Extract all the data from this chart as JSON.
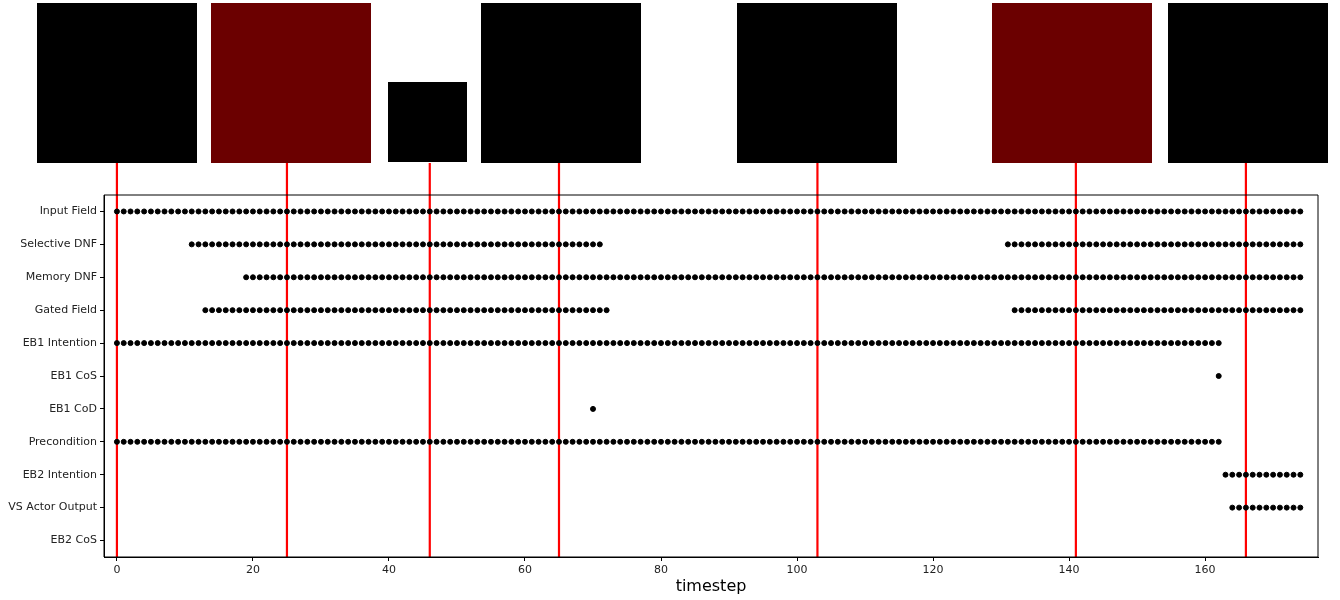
{
  "chart_data": {
    "type": "scatter",
    "xlabel": "timestep",
    "xlim": [
      -1.9,
      176.6
    ],
    "xticks": [
      0,
      20,
      40,
      60,
      80,
      100,
      120,
      140,
      160
    ],
    "orientation": "horizontal",
    "categories": [
      "Input Field",
      "Selective DNF",
      "Memory DNF",
      "Gated Field",
      "EB1 Intention",
      "EB1 CoS",
      "EB1 CoD",
      "Precondition",
      "EB2 Intention",
      "VS Actor Output",
      "EB2 CoS"
    ],
    "grid": false,
    "legend": false,
    "marker": "circle",
    "ref_lines": [
      {
        "axis": "x",
        "value": 0,
        "color": "#ff0000"
      },
      {
        "axis": "x",
        "value": 25,
        "color": "#ff0000"
      },
      {
        "axis": "x",
        "value": 46,
        "color": "#ff0000"
      },
      {
        "axis": "x",
        "value": 65,
        "color": "#ff0000"
      },
      {
        "axis": "x",
        "value": 103,
        "color": "#ff0000"
      },
      {
        "axis": "x",
        "value": 141,
        "color": "#ff0000"
      },
      {
        "axis": "x",
        "value": 166,
        "color": "#ff0000"
      }
    ],
    "series": [
      {
        "color": "#000000",
        "x": [
          "Input Field",
          "Input Field",
          "Input Field",
          "Input Field",
          "Input Field",
          "Input Field",
          "Input Field",
          "Input Field",
          "Input Field",
          "Input Field",
          "Input Field",
          "Input Field",
          "Input Field",
          "Input Field",
          "Input Field",
          "Input Field",
          "Input Field",
          "Input Field",
          "Input Field",
          "Input Field",
          "Input Field",
          "Input Field",
          "Input Field",
          "Input Field",
          "Input Field",
          "Input Field",
          "Input Field",
          "Input Field",
          "Input Field",
          "Input Field",
          "Input Field",
          "Input Field",
          "Input Field",
          "Input Field",
          "Input Field",
          "Input Field",
          "Input Field",
          "Input Field",
          "Input Field",
          "Input Field",
          "Input Field",
          "Input Field",
          "Input Field",
          "Input Field",
          "Input Field",
          "Input Field",
          "Input Field",
          "Input Field",
          "Input Field",
          "Input Field",
          "Input Field",
          "Input Field",
          "Input Field",
          "Input Field",
          "Input Field",
          "Input Field",
          "Input Field",
          "Input Field",
          "Input Field",
          "Input Field",
          "Input Field",
          "Input Field",
          "Input Field",
          "Input Field",
          "Input Field",
          "Input Field",
          "Input Field",
          "Input Field",
          "Input Field",
          "Input Field",
          "Input Field",
          "Input Field",
          "Input Field",
          "Input Field",
          "Input Field",
          "Input Field",
          "Input Field",
          "Input Field",
          "Input Field",
          "Input Field",
          "Input Field",
          "Input Field",
          "Input Field",
          "Input Field",
          "Input Field",
          "Input Field",
          "Input Field",
          "Input Field",
          "Input Field",
          "Input Field",
          "Input Field",
          "Input Field",
          "Input Field",
          "Input Field",
          "Input Field",
          "Input Field",
          "Input Field",
          "Input Field",
          "Input Field",
          "Input Field",
          "Input Field",
          "Input Field",
          "Input Field",
          "Input Field",
          "Input Field",
          "Input Field",
          "Input Field",
          "Input Field",
          "Input Field",
          "Input Field",
          "Input Field",
          "Input Field",
          "Input Field",
          "Input Field",
          "Input Field",
          "Input Field",
          "Input Field",
          "Input Field",
          "Input Field",
          "Input Field",
          "Input Field",
          "Input Field",
          "Input Field",
          "Input Field",
          "Input Field",
          "Input Field",
          "Input Field",
          "Input Field",
          "Input Field",
          "Input Field",
          "Input Field",
          "Input Field",
          "Input Field",
          "Input Field",
          "Input Field",
          "Input Field",
          "Input Field",
          "Input Field",
          "Input Field",
          "Input Field",
          "Input Field",
          "Input Field",
          "Input Field",
          "Input Field",
          "Input Field",
          "Input Field",
          "Input Field",
          "Input Field",
          "Input Field",
          "Input Field",
          "Input Field",
          "Input Field",
          "Input Field",
          "Input Field",
          "Input Field",
          "Input Field",
          "Input Field",
          "Input Field",
          "Input Field",
          "Input Field",
          "Input Field",
          "Input Field",
          "Input Field",
          "Input Field",
          "Input Field",
          "Input Field",
          "Input Field",
          "Input Field",
          "Input Field",
          "Input Field",
          "Input Field",
          "Input Field",
          "Input Field",
          "Input Field",
          "Input Field"
        ],
        "values": [
          0,
          1,
          2,
          3,
          4,
          5,
          6,
          7,
          8,
          9,
          10,
          11,
          12,
          13,
          14,
          15,
          16,
          17,
          18,
          19,
          20,
          21,
          22,
          23,
          24,
          25,
          26,
          27,
          28,
          29,
          30,
          31,
          32,
          33,
          34,
          35,
          36,
          37,
          38,
          39,
          40,
          41,
          42,
          43,
          44,
          45,
          46,
          47,
          48,
          49,
          50,
          51,
          52,
          53,
          54,
          55,
          56,
          57,
          58,
          59,
          60,
          61,
          62,
          63,
          64,
          65,
          66,
          67,
          68,
          69,
          70,
          71,
          72,
          73,
          74,
          75,
          76,
          77,
          78,
          79,
          80,
          81,
          82,
          83,
          84,
          85,
          86,
          87,
          88,
          89,
          90,
          91,
          92,
          93,
          94,
          95,
          96,
          97,
          98,
          99,
          100,
          101,
          102,
          103,
          104,
          105,
          106,
          107,
          108,
          109,
          110,
          111,
          112,
          113,
          114,
          115,
          116,
          117,
          118,
          119,
          120,
          121,
          122,
          123,
          124,
          125,
          126,
          127,
          128,
          129,
          130,
          131,
          132,
          133,
          134,
          135,
          136,
          137,
          138,
          139,
          140,
          141,
          142,
          143,
          144,
          145,
          146,
          147,
          148,
          149,
          150,
          151,
          152,
          153,
          154,
          155,
          156,
          157,
          158,
          159,
          160,
          161,
          162,
          163,
          164,
          165,
          166,
          167,
          168,
          169,
          170,
          171,
          172,
          173,
          174
        ]
      },
      {
        "color": "#000000",
        "x": [
          "Selective DNF",
          "Selective DNF",
          "Selective DNF",
          "Selective DNF",
          "Selective DNF",
          "Selective DNF",
          "Selective DNF",
          "Selective DNF",
          "Selective DNF",
          "Selective DNF",
          "Selective DNF",
          "Selective DNF",
          "Selective DNF",
          "Selective DNF",
          "Selective DNF",
          "Selective DNF",
          "Selective DNF",
          "Selective DNF",
          "Selective DNF",
          "Selective DNF",
          "Selective DNF",
          "Selective DNF",
          "Selective DNF",
          "Selective DNF",
          "Selective DNF",
          "Selective DNF",
          "Selective DNF",
          "Selective DNF",
          "Selective DNF",
          "Selective DNF",
          "Selective DNF",
          "Selective DNF",
          "Selective DNF",
          "Selective DNF",
          "Selective DNF",
          "Selective DNF",
          "Selective DNF",
          "Selective DNF",
          "Selective DNF",
          "Selective DNF",
          "Selective DNF",
          "Selective DNF",
          "Selective DNF",
          "Selective DNF",
          "Selective DNF",
          "Selective DNF",
          "Selective DNF",
          "Selective DNF",
          "Selective DNF",
          "Selective DNF",
          "Selective DNF",
          "Selective DNF",
          "Selective DNF",
          "Selective DNF",
          "Selective DNF",
          "Selective DNF",
          "Selective DNF",
          "Selective DNF",
          "Selective DNF",
          "Selective DNF",
          "Selective DNF",
          "Selective DNF",
          "Selective DNF",
          "Selective DNF",
          "Selective DNF",
          "Selective DNF",
          "Selective DNF",
          "Selective DNF",
          "Selective DNF",
          "Selective DNF",
          "Selective DNF",
          "Selective DNF",
          "Selective DNF",
          "Selective DNF",
          "Selective DNF",
          "Selective DNF",
          "Selective DNF",
          "Selective DNF",
          "Selective DNF",
          "Selective DNF",
          "Selective DNF",
          "Selective DNF",
          "Selective DNF",
          "Selective DNF",
          "Selective DNF",
          "Selective DNF",
          "Selective DNF",
          "Selective DNF",
          "Selective DNF",
          "Selective DNF",
          "Selective DNF",
          "Selective DNF",
          "Selective DNF",
          "Selective DNF",
          "Selective DNF",
          "Selective DNF",
          "Selective DNF",
          "Selective DNF",
          "Selective DNF",
          "Selective DNF",
          "Selective DNF",
          "Selective DNF",
          "Selective DNF",
          "Selective DNF",
          "Selective DNF"
        ],
        "values": [
          11,
          12,
          13,
          14,
          15,
          16,
          17,
          18,
          19,
          20,
          21,
          22,
          23,
          24,
          25,
          26,
          27,
          28,
          29,
          30,
          31,
          32,
          33,
          34,
          35,
          36,
          37,
          38,
          39,
          40,
          41,
          42,
          43,
          44,
          45,
          46,
          47,
          48,
          49,
          50,
          51,
          52,
          53,
          54,
          55,
          56,
          57,
          58,
          59,
          60,
          61,
          62,
          63,
          64,
          65,
          66,
          67,
          68,
          69,
          70,
          71,
          131,
          132,
          133,
          134,
          135,
          136,
          137,
          138,
          139,
          140,
          141,
          142,
          143,
          144,
          145,
          146,
          147,
          148,
          149,
          150,
          151,
          152,
          153,
          154,
          155,
          156,
          157,
          158,
          159,
          160,
          161,
          162,
          163,
          164,
          165,
          166,
          167,
          168,
          169,
          170,
          171,
          172,
          173,
          174
        ]
      },
      {
        "color": "#000000",
        "x": [
          "Memory DNF",
          "Memory DNF",
          "Memory DNF",
          "Memory DNF",
          "Memory DNF",
          "Memory DNF",
          "Memory DNF",
          "Memory DNF",
          "Memory DNF",
          "Memory DNF",
          "Memory DNF",
          "Memory DNF",
          "Memory DNF",
          "Memory DNF",
          "Memory DNF",
          "Memory DNF",
          "Memory DNF",
          "Memory DNF",
          "Memory DNF",
          "Memory DNF",
          "Memory DNF",
          "Memory DNF",
          "Memory DNF",
          "Memory DNF",
          "Memory DNF",
          "Memory DNF",
          "Memory DNF",
          "Memory DNF",
          "Memory DNF",
          "Memory DNF",
          "Memory DNF",
          "Memory DNF",
          "Memory DNF",
          "Memory DNF",
          "Memory DNF",
          "Memory DNF",
          "Memory DNF",
          "Memory DNF",
          "Memory DNF",
          "Memory DNF",
          "Memory DNF",
          "Memory DNF",
          "Memory DNF",
          "Memory DNF",
          "Memory DNF",
          "Memory DNF",
          "Memory DNF",
          "Memory DNF",
          "Memory DNF",
          "Memory DNF",
          "Memory DNF",
          "Memory DNF",
          "Memory DNF",
          "Memory DNF",
          "Memory DNF",
          "Memory DNF",
          "Memory DNF",
          "Memory DNF",
          "Memory DNF",
          "Memory DNF",
          "Memory DNF",
          "Memory DNF",
          "Memory DNF",
          "Memory DNF",
          "Memory DNF",
          "Memory DNF",
          "Memory DNF",
          "Memory DNF",
          "Memory DNF",
          "Memory DNF",
          "Memory DNF",
          "Memory DNF",
          "Memory DNF",
          "Memory DNF",
          "Memory DNF",
          "Memory DNF",
          "Memory DNF",
          "Memory DNF",
          "Memory DNF",
          "Memory DNF",
          "Memory DNF",
          "Memory DNF",
          "Memory DNF",
          "Memory DNF",
          "Memory DNF",
          "Memory DNF",
          "Memory DNF",
          "Memory DNF",
          "Memory DNF",
          "Memory DNF",
          "Memory DNF",
          "Memory DNF",
          "Memory DNF",
          "Memory DNF",
          "Memory DNF",
          "Memory DNF",
          "Memory DNF",
          "Memory DNF",
          "Memory DNF",
          "Memory DNF",
          "Memory DNF",
          "Memory DNF",
          "Memory DNF",
          "Memory DNF",
          "Memory DNF",
          "Memory DNF",
          "Memory DNF",
          "Memory DNF",
          "Memory DNF",
          "Memory DNF",
          "Memory DNF",
          "Memory DNF",
          "Memory DNF",
          "Memory DNF",
          "Memory DNF",
          "Memory DNF",
          "Memory DNF",
          "Memory DNF",
          "Memory DNF",
          "Memory DNF",
          "Memory DNF",
          "Memory DNF",
          "Memory DNF",
          "Memory DNF",
          "Memory DNF",
          "Memory DNF",
          "Memory DNF",
          "Memory DNF",
          "Memory DNF",
          "Memory DNF",
          "Memory DNF",
          "Memory DNF",
          "Memory DNF",
          "Memory DNF",
          "Memory DNF",
          "Memory DNF",
          "Memory DNF",
          "Memory DNF",
          "Memory DNF",
          "Memory DNF",
          "Memory DNF",
          "Memory DNF",
          "Memory DNF",
          "Memory DNF",
          "Memory DNF",
          "Memory DNF",
          "Memory DNF",
          "Memory DNF",
          "Memory DNF",
          "Memory DNF",
          "Memory DNF",
          "Memory DNF",
          "Memory DNF",
          "Memory DNF",
          "Memory DNF",
          "Memory DNF"
        ],
        "values": [
          19,
          20,
          21,
          22,
          23,
          24,
          25,
          26,
          27,
          28,
          29,
          30,
          31,
          32,
          33,
          34,
          35,
          36,
          37,
          38,
          39,
          40,
          41,
          42,
          43,
          44,
          45,
          46,
          47,
          48,
          49,
          50,
          51,
          52,
          53,
          54,
          55,
          56,
          57,
          58,
          59,
          60,
          61,
          62,
          63,
          64,
          65,
          66,
          67,
          68,
          69,
          70,
          71,
          72,
          73,
          74,
          75,
          76,
          77,
          78,
          79,
          80,
          81,
          82,
          83,
          84,
          85,
          86,
          87,
          88,
          89,
          90,
          91,
          92,
          93,
          94,
          95,
          96,
          97,
          98,
          99,
          100,
          101,
          102,
          103,
          104,
          105,
          106,
          107,
          108,
          109,
          110,
          111,
          112,
          113,
          114,
          115,
          116,
          117,
          118,
          119,
          120,
          121,
          122,
          123,
          124,
          125,
          126,
          127,
          128,
          129,
          130,
          131,
          132,
          133,
          134,
          135,
          136,
          137,
          138,
          139,
          140,
          141,
          142,
          143,
          144,
          145,
          146,
          147,
          148,
          149,
          150,
          151,
          152,
          153,
          154,
          155,
          156,
          157,
          158,
          159,
          160,
          161,
          162,
          163,
          164,
          165,
          166,
          167,
          168,
          169,
          170,
          171,
          172,
          173,
          174
        ]
      },
      {
        "color": "#000000",
        "x": [
          "Gated Field",
          "Gated Field",
          "Gated Field",
          "Gated Field",
          "Gated Field",
          "Gated Field",
          "Gated Field",
          "Gated Field",
          "Gated Field",
          "Gated Field",
          "Gated Field",
          "Gated Field",
          "Gated Field",
          "Gated Field",
          "Gated Field",
          "Gated Field",
          "Gated Field",
          "Gated Field",
          "Gated Field",
          "Gated Field",
          "Gated Field",
          "Gated Field",
          "Gated Field",
          "Gated Field",
          "Gated Field",
          "Gated Field",
          "Gated Field",
          "Gated Field",
          "Gated Field",
          "Gated Field",
          "Gated Field",
          "Gated Field",
          "Gated Field",
          "Gated Field",
          "Gated Field",
          "Gated Field",
          "Gated Field",
          "Gated Field",
          "Gated Field",
          "Gated Field",
          "Gated Field",
          "Gated Field",
          "Gated Field",
          "Gated Field",
          "Gated Field",
          "Gated Field",
          "Gated Field",
          "Gated Field",
          "Gated Field",
          "Gated Field",
          "Gated Field",
          "Gated Field",
          "Gated Field",
          "Gated Field",
          "Gated Field",
          "Gated Field",
          "Gated Field",
          "Gated Field",
          "Gated Field",
          "Gated Field",
          "Gated Field",
          "Gated Field",
          "Gated Field",
          "Gated Field",
          "Gated Field",
          "Gated Field",
          "Gated Field",
          "Gated Field",
          "Gated Field",
          "Gated Field",
          "Gated Field",
          "Gated Field",
          "Gated Field",
          "Gated Field",
          "Gated Field",
          "Gated Field",
          "Gated Field",
          "Gated Field",
          "Gated Field",
          "Gated Field",
          "Gated Field",
          "Gated Field",
          "Gated Field",
          "Gated Field",
          "Gated Field",
          "Gated Field",
          "Gated Field",
          "Gated Field",
          "Gated Field",
          "Gated Field",
          "Gated Field",
          "Gated Field",
          "Gated Field",
          "Gated Field",
          "Gated Field",
          "Gated Field",
          "Gated Field",
          "Gated Field",
          "Gated Field",
          "Gated Field",
          "Gated Field",
          "Gated Field",
          "Gated Field"
        ],
        "values": [
          13,
          14,
          15,
          16,
          17,
          18,
          19,
          20,
          21,
          22,
          23,
          24,
          25,
          26,
          27,
          28,
          29,
          30,
          31,
          32,
          33,
          34,
          35,
          36,
          37,
          38,
          39,
          40,
          41,
          42,
          43,
          44,
          45,
          46,
          47,
          48,
          49,
          50,
          51,
          52,
          53,
          54,
          55,
          56,
          57,
          58,
          59,
          60,
          61,
          62,
          63,
          64,
          65,
          66,
          67,
          68,
          69,
          70,
          71,
          72,
          132,
          133,
          134,
          135,
          136,
          137,
          138,
          139,
          140,
          141,
          142,
          143,
          144,
          145,
          146,
          147,
          148,
          149,
          150,
          151,
          152,
          153,
          154,
          155,
          156,
          157,
          158,
          159,
          160,
          161,
          162,
          163,
          164,
          165,
          166,
          167,
          168,
          169,
          170,
          171,
          172,
          173,
          174
        ]
      },
      {
        "color": "#000000",
        "x": [
          "EB1 Intention",
          "EB1 Intention",
          "EB1 Intention",
          "EB1 Intention",
          "EB1 Intention",
          "EB1 Intention",
          "EB1 Intention",
          "EB1 Intention",
          "EB1 Intention",
          "EB1 Intention",
          "EB1 Intention",
          "EB1 Intention",
          "EB1 Intention",
          "EB1 Intention",
          "EB1 Intention",
          "EB1 Intention",
          "EB1 Intention",
          "EB1 Intention",
          "EB1 Intention",
          "EB1 Intention",
          "EB1 Intention",
          "EB1 Intention",
          "EB1 Intention",
          "EB1 Intention",
          "EB1 Intention",
          "EB1 Intention",
          "EB1 Intention",
          "EB1 Intention",
          "EB1 Intention",
          "EB1 Intention",
          "EB1 Intention",
          "EB1 Intention",
          "EB1 Intention",
          "EB1 Intention",
          "EB1 Intention",
          "EB1 Intention",
          "EB1 Intention",
          "EB1 Intention",
          "EB1 Intention",
          "EB1 Intention",
          "EB1 Intention",
          "EB1 Intention",
          "EB1 Intention",
          "EB1 Intention",
          "EB1 Intention",
          "EB1 Intention",
          "EB1 Intention",
          "EB1 Intention",
          "EB1 Intention",
          "EB1 Intention",
          "EB1 Intention",
          "EB1 Intention",
          "EB1 Intention",
          "EB1 Intention",
          "EB1 Intention",
          "EB1 Intention",
          "EB1 Intention",
          "EB1 Intention",
          "EB1 Intention",
          "EB1 Intention",
          "EB1 Intention",
          "EB1 Intention",
          "EB1 Intention",
          "EB1 Intention",
          "EB1 Intention",
          "EB1 Intention",
          "EB1 Intention",
          "EB1 Intention",
          "EB1 Intention",
          "EB1 Intention",
          "EB1 Intention",
          "EB1 Intention",
          "EB1 Intention",
          "EB1 Intention",
          "EB1 Intention",
          "EB1 Intention",
          "EB1 Intention",
          "EB1 Intention",
          "EB1 Intention",
          "EB1 Intention",
          "EB1 Intention",
          "EB1 Intention",
          "EB1 Intention",
          "EB1 Intention",
          "EB1 Intention",
          "EB1 Intention",
          "EB1 Intention",
          "EB1 Intention",
          "EB1 Intention",
          "EB1 Intention",
          "EB1 Intention",
          "EB1 Intention",
          "EB1 Intention",
          "EB1 Intention",
          "EB1 Intention",
          "EB1 Intention",
          "EB1 Intention",
          "EB1 Intention",
          "EB1 Intention",
          "EB1 Intention",
          "EB1 Intention",
          "EB1 Intention",
          "EB1 Intention",
          "EB1 Intention",
          "EB1 Intention",
          "EB1 Intention",
          "EB1 Intention",
          "EB1 Intention",
          "EB1 Intention",
          "EB1 Intention",
          "EB1 Intention",
          "EB1 Intention",
          "EB1 Intention",
          "EB1 Intention",
          "EB1 Intention",
          "EB1 Intention",
          "EB1 Intention",
          "EB1 Intention",
          "EB1 Intention",
          "EB1 Intention",
          "EB1 Intention",
          "EB1 Intention",
          "EB1 Intention",
          "EB1 Intention",
          "EB1 Intention",
          "EB1 Intention",
          "EB1 Intention",
          "EB1 Intention",
          "EB1 Intention",
          "EB1 Intention",
          "EB1 Intention",
          "EB1 Intention",
          "EB1 Intention",
          "EB1 Intention",
          "EB1 Intention",
          "EB1 Intention",
          "EB1 Intention",
          "EB1 Intention",
          "EB1 Intention",
          "EB1 Intention",
          "EB1 Intention",
          "EB1 Intention",
          "EB1 Intention",
          "EB1 Intention",
          "EB1 Intention",
          "EB1 Intention",
          "EB1 Intention",
          "EB1 Intention",
          "EB1 Intention",
          "EB1 Intention",
          "EB1 Intention",
          "EB1 Intention",
          "EB1 Intention",
          "EB1 Intention",
          "EB1 Intention",
          "EB1 Intention",
          "EB1 Intention",
          "EB1 Intention",
          "EB1 Intention",
          "EB1 Intention",
          "EB1 Intention",
          "EB1 Intention",
          "EB1 Intention"
        ],
        "values": [
          0,
          1,
          2,
          3,
          4,
          5,
          6,
          7,
          8,
          9,
          10,
          11,
          12,
          13,
          14,
          15,
          16,
          17,
          18,
          19,
          20,
          21,
          22,
          23,
          24,
          25,
          26,
          27,
          28,
          29,
          30,
          31,
          32,
          33,
          34,
          35,
          36,
          37,
          38,
          39,
          40,
          41,
          42,
          43,
          44,
          45,
          46,
          47,
          48,
          49,
          50,
          51,
          52,
          53,
          54,
          55,
          56,
          57,
          58,
          59,
          60,
          61,
          62,
          63,
          64,
          65,
          66,
          67,
          68,
          69,
          70,
          71,
          72,
          73,
          74,
          75,
          76,
          77,
          78,
          79,
          80,
          81,
          82,
          83,
          84,
          85,
          86,
          87,
          88,
          89,
          90,
          91,
          92,
          93,
          94,
          95,
          96,
          97,
          98,
          99,
          100,
          101,
          102,
          103,
          104,
          105,
          106,
          107,
          108,
          109,
          110,
          111,
          112,
          113,
          114,
          115,
          116,
          117,
          118,
          119,
          120,
          121,
          122,
          123,
          124,
          125,
          126,
          127,
          128,
          129,
          130,
          131,
          132,
          133,
          134,
          135,
          136,
          137,
          138,
          139,
          140,
          141,
          142,
          143,
          144,
          145,
          146,
          147,
          148,
          149,
          150,
          151,
          152,
          153,
          154,
          155,
          156,
          157,
          158,
          159,
          160,
          161,
          162
        ]
      },
      {
        "color": "#000000",
        "x": [
          "EB1 CoS"
        ],
        "values": [
          162
        ]
      },
      {
        "color": "#000000",
        "x": [
          "EB1 CoD"
        ],
        "values": [
          70
        ]
      },
      {
        "color": "#000000",
        "x": [
          "Precondition",
          "Precondition",
          "Precondition",
          "Precondition",
          "Precondition",
          "Precondition",
          "Precondition",
          "Precondition",
          "Precondition",
          "Precondition",
          "Precondition",
          "Precondition",
          "Precondition",
          "Precondition",
          "Precondition",
          "Precondition",
          "Precondition",
          "Precondition",
          "Precondition",
          "Precondition",
          "Precondition",
          "Precondition",
          "Precondition",
          "Precondition",
          "Precondition",
          "Precondition",
          "Precondition",
          "Precondition",
          "Precondition",
          "Precondition",
          "Precondition",
          "Precondition",
          "Precondition",
          "Precondition",
          "Precondition",
          "Precondition",
          "Precondition",
          "Precondition",
          "Precondition",
          "Precondition",
          "Precondition",
          "Precondition",
          "Precondition",
          "Precondition",
          "Precondition",
          "Precondition",
          "Precondition",
          "Precondition",
          "Precondition",
          "Precondition",
          "Precondition",
          "Precondition",
          "Precondition",
          "Precondition",
          "Precondition",
          "Precondition",
          "Precondition",
          "Precondition",
          "Precondition",
          "Precondition",
          "Precondition",
          "Precondition",
          "Precondition",
          "Precondition",
          "Precondition",
          "Precondition",
          "Precondition",
          "Precondition",
          "Precondition",
          "Precondition",
          "Precondition",
          "Precondition",
          "Precondition",
          "Precondition",
          "Precondition",
          "Precondition",
          "Precondition",
          "Precondition",
          "Precondition",
          "Precondition",
          "Precondition",
          "Precondition",
          "Precondition",
          "Precondition",
          "Precondition",
          "Precondition",
          "Precondition",
          "Precondition",
          "Precondition",
          "Precondition",
          "Precondition",
          "Precondition",
          "Precondition",
          "Precondition",
          "Precondition",
          "Precondition",
          "Precondition",
          "Precondition",
          "Precondition",
          "Precondition",
          "Precondition",
          "Precondition",
          "Precondition",
          "Precondition",
          "Precondition",
          "Precondition",
          "Precondition",
          "Precondition",
          "Precondition",
          "Precondition",
          "Precondition",
          "Precondition",
          "Precondition",
          "Precondition",
          "Precondition",
          "Precondition",
          "Precondition",
          "Precondition",
          "Precondition",
          "Precondition",
          "Precondition",
          "Precondition",
          "Precondition",
          "Precondition",
          "Precondition",
          "Precondition",
          "Precondition",
          "Precondition",
          "Precondition",
          "Precondition",
          "Precondition",
          "Precondition",
          "Precondition",
          "Precondition",
          "Precondition",
          "Precondition",
          "Precondition",
          "Precondition",
          "Precondition",
          "Precondition",
          "Precondition",
          "Precondition",
          "Precondition",
          "Precondition",
          "Precondition",
          "Precondition",
          "Precondition",
          "Precondition",
          "Precondition",
          "Precondition",
          "Precondition",
          "Precondition",
          "Precondition",
          "Precondition",
          "Precondition",
          "Precondition",
          "Precondition",
          "Precondition",
          "Precondition",
          "Precondition",
          "Precondition",
          "Precondition",
          "Precondition"
        ],
        "values": [
          0,
          1,
          2,
          3,
          4,
          5,
          6,
          7,
          8,
          9,
          10,
          11,
          12,
          13,
          14,
          15,
          16,
          17,
          18,
          19,
          20,
          21,
          22,
          23,
          24,
          25,
          26,
          27,
          28,
          29,
          30,
          31,
          32,
          33,
          34,
          35,
          36,
          37,
          38,
          39,
          40,
          41,
          42,
          43,
          44,
          45,
          46,
          47,
          48,
          49,
          50,
          51,
          52,
          53,
          54,
          55,
          56,
          57,
          58,
          59,
          60,
          61,
          62,
          63,
          64,
          65,
          66,
          67,
          68,
          69,
          70,
          71,
          72,
          73,
          74,
          75,
          76,
          77,
          78,
          79,
          80,
          81,
          82,
          83,
          84,
          85,
          86,
          87,
          88,
          89,
          90,
          91,
          92,
          93,
          94,
          95,
          96,
          97,
          98,
          99,
          100,
          101,
          102,
          103,
          104,
          105,
          106,
          107,
          108,
          109,
          110,
          111,
          112,
          113,
          114,
          115,
          116,
          117,
          118,
          119,
          120,
          121,
          122,
          123,
          124,
          125,
          126,
          127,
          128,
          129,
          130,
          131,
          132,
          133,
          134,
          135,
          136,
          137,
          138,
          139,
          140,
          141,
          142,
          143,
          144,
          145,
          146,
          147,
          148,
          149,
          150,
          151,
          152,
          153,
          154,
          155,
          156,
          157,
          158,
          159,
          160,
          161,
          162
        ]
      },
      {
        "color": "#000000",
        "x": [
          "EB2 Intention",
          "EB2 Intention",
          "EB2 Intention",
          "EB2 Intention",
          "EB2 Intention",
          "EB2 Intention",
          "EB2 Intention",
          "EB2 Intention",
          "EB2 Intention",
          "EB2 Intention",
          "EB2 Intention",
          "EB2 Intention"
        ],
        "values": [
          163,
          164,
          165,
          166,
          167,
          168,
          169,
          170,
          171,
          172,
          173,
          174
        ]
      },
      {
        "color": "#000000",
        "x": [
          "VS Actor Output",
          "VS Actor Output",
          "VS Actor Output",
          "VS Actor Output",
          "VS Actor Output",
          "VS Actor Output",
          "VS Actor Output",
          "VS Actor Output",
          "VS Actor Output",
          "VS Actor Output",
          "VS Actor Output"
        ],
        "values": [
          164,
          165,
          166,
          167,
          168,
          169,
          170,
          171,
          172,
          173,
          174
        ]
      }
    ]
  }
}
